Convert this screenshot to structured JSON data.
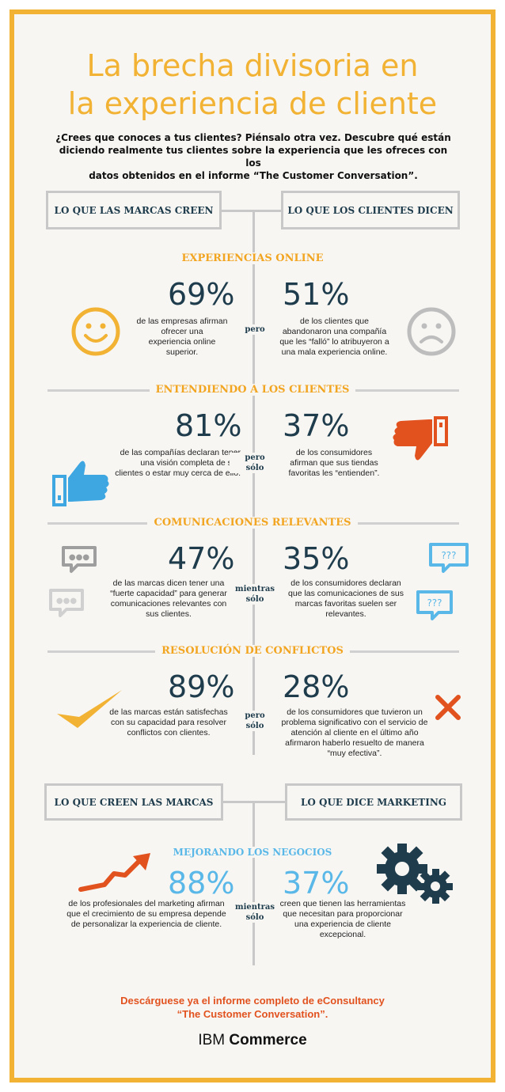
{
  "title": {
    "line1": "La brecha divisoria en",
    "line2": "la experiencia de cliente"
  },
  "intro": {
    "line1": "¿Crees que conoces a tus clientes? Piénsalo otra vez. Descubre qué están",
    "line2": "diciendo realmente tus clientes sobre la experiencia que les ofreces con los",
    "line3": "datos obtenidos en el informe “The Customer Conversation”."
  },
  "headers1": {
    "left": "LO QUE LAS MARCAS CREEN",
    "right": "LO QUE LOS CLIENTES DICEN"
  },
  "sections": [
    {
      "title": "EXPERIENCIAS ONLINE",
      "left_pct": "69%",
      "left_desc": [
        "de las empresas afirman",
        "ofrecer una",
        "experiencia online",
        "superior."
      ],
      "conj": [
        "pero"
      ],
      "right_pct": "51%",
      "right_desc": [
        "de los clientes que",
        "abandonaron una compañía",
        "que les “falló” lo atribuyeron a",
        "una mala experiencia online."
      ]
    },
    {
      "title": "ENTENDIENDO A LOS CLIENTES",
      "left_pct": "81%",
      "left_desc": [
        "de las compañías declaran tener",
        "una visión completa de sus",
        "clientes o estar muy cerca de ello."
      ],
      "conj": [
        "pero",
        "sólo"
      ],
      "right_pct": "37%",
      "right_desc": [
        "de los consumidores",
        "afirman que sus tiendas",
        "favoritas les “entienden”."
      ]
    },
    {
      "title": "COMUNICACIONES RELEVANTES",
      "left_pct": "47%",
      "left_desc": [
        "de las marcas dicen tener una",
        "“fuerte capacidad” para generar",
        "comunicaciones relevantes con",
        "sus clientes."
      ],
      "conj": [
        "mientras",
        "sólo"
      ],
      "right_pct": "35%",
      "right_desc": [
        "de los consumidores declaran",
        "que las comunicaciones de sus",
        "marcas favoritas suelen ser",
        "relevantes."
      ]
    },
    {
      "title": "RESOLUCIÓN DE CONFLICTOS",
      "left_pct": "89%",
      "left_desc": [
        "de las marcas están satisfechas",
        "con su capacidad para resolver",
        "conflictos con clientes."
      ],
      "conj": [
        "pero",
        "sólo"
      ],
      "right_pct": "28%",
      "right_desc": [
        "de los consumidores que tuvieron un",
        "problema significativo con el servicio de",
        "atención al cliente en el último año",
        "afirmaron haberlo resuelto de manera",
        "“muy efectiva”."
      ]
    }
  ],
  "headers2": {
    "left": "LO QUE CREEN LAS MARCAS",
    "right": "LO QUE DICE MARKETING"
  },
  "business": {
    "title": "MEJORANDO LOS NEGOCIOS",
    "left_pct": "88%",
    "left_desc": [
      "de los profesionales del marketing afirman",
      "que el crecimiento de su empresa depende",
      "de personalizar la experiencia de cliente."
    ],
    "conj": [
      "mientras",
      "sólo"
    ],
    "right_pct": "37%",
    "right_desc": [
      "creen que tienen las herramientas",
      "que necesitan para proporcionar",
      "una experiencia de cliente",
      "excepcional."
    ]
  },
  "chat_left_glyph": "●●●",
  "chat_right_glyph": "???",
  "footer": {
    "line1": "Descárguese ya el informe completo de eConsultancy",
    "line2": "“The Customer Conversation”."
  },
  "logo": {
    "brand": "IBM",
    "product": "Commerce"
  },
  "colors": {
    "frame": "#f2b233",
    "section_title": "#f2a521",
    "navy": "#1e3c4c",
    "blue": "#5ab8e8",
    "red": "#e2521f"
  }
}
